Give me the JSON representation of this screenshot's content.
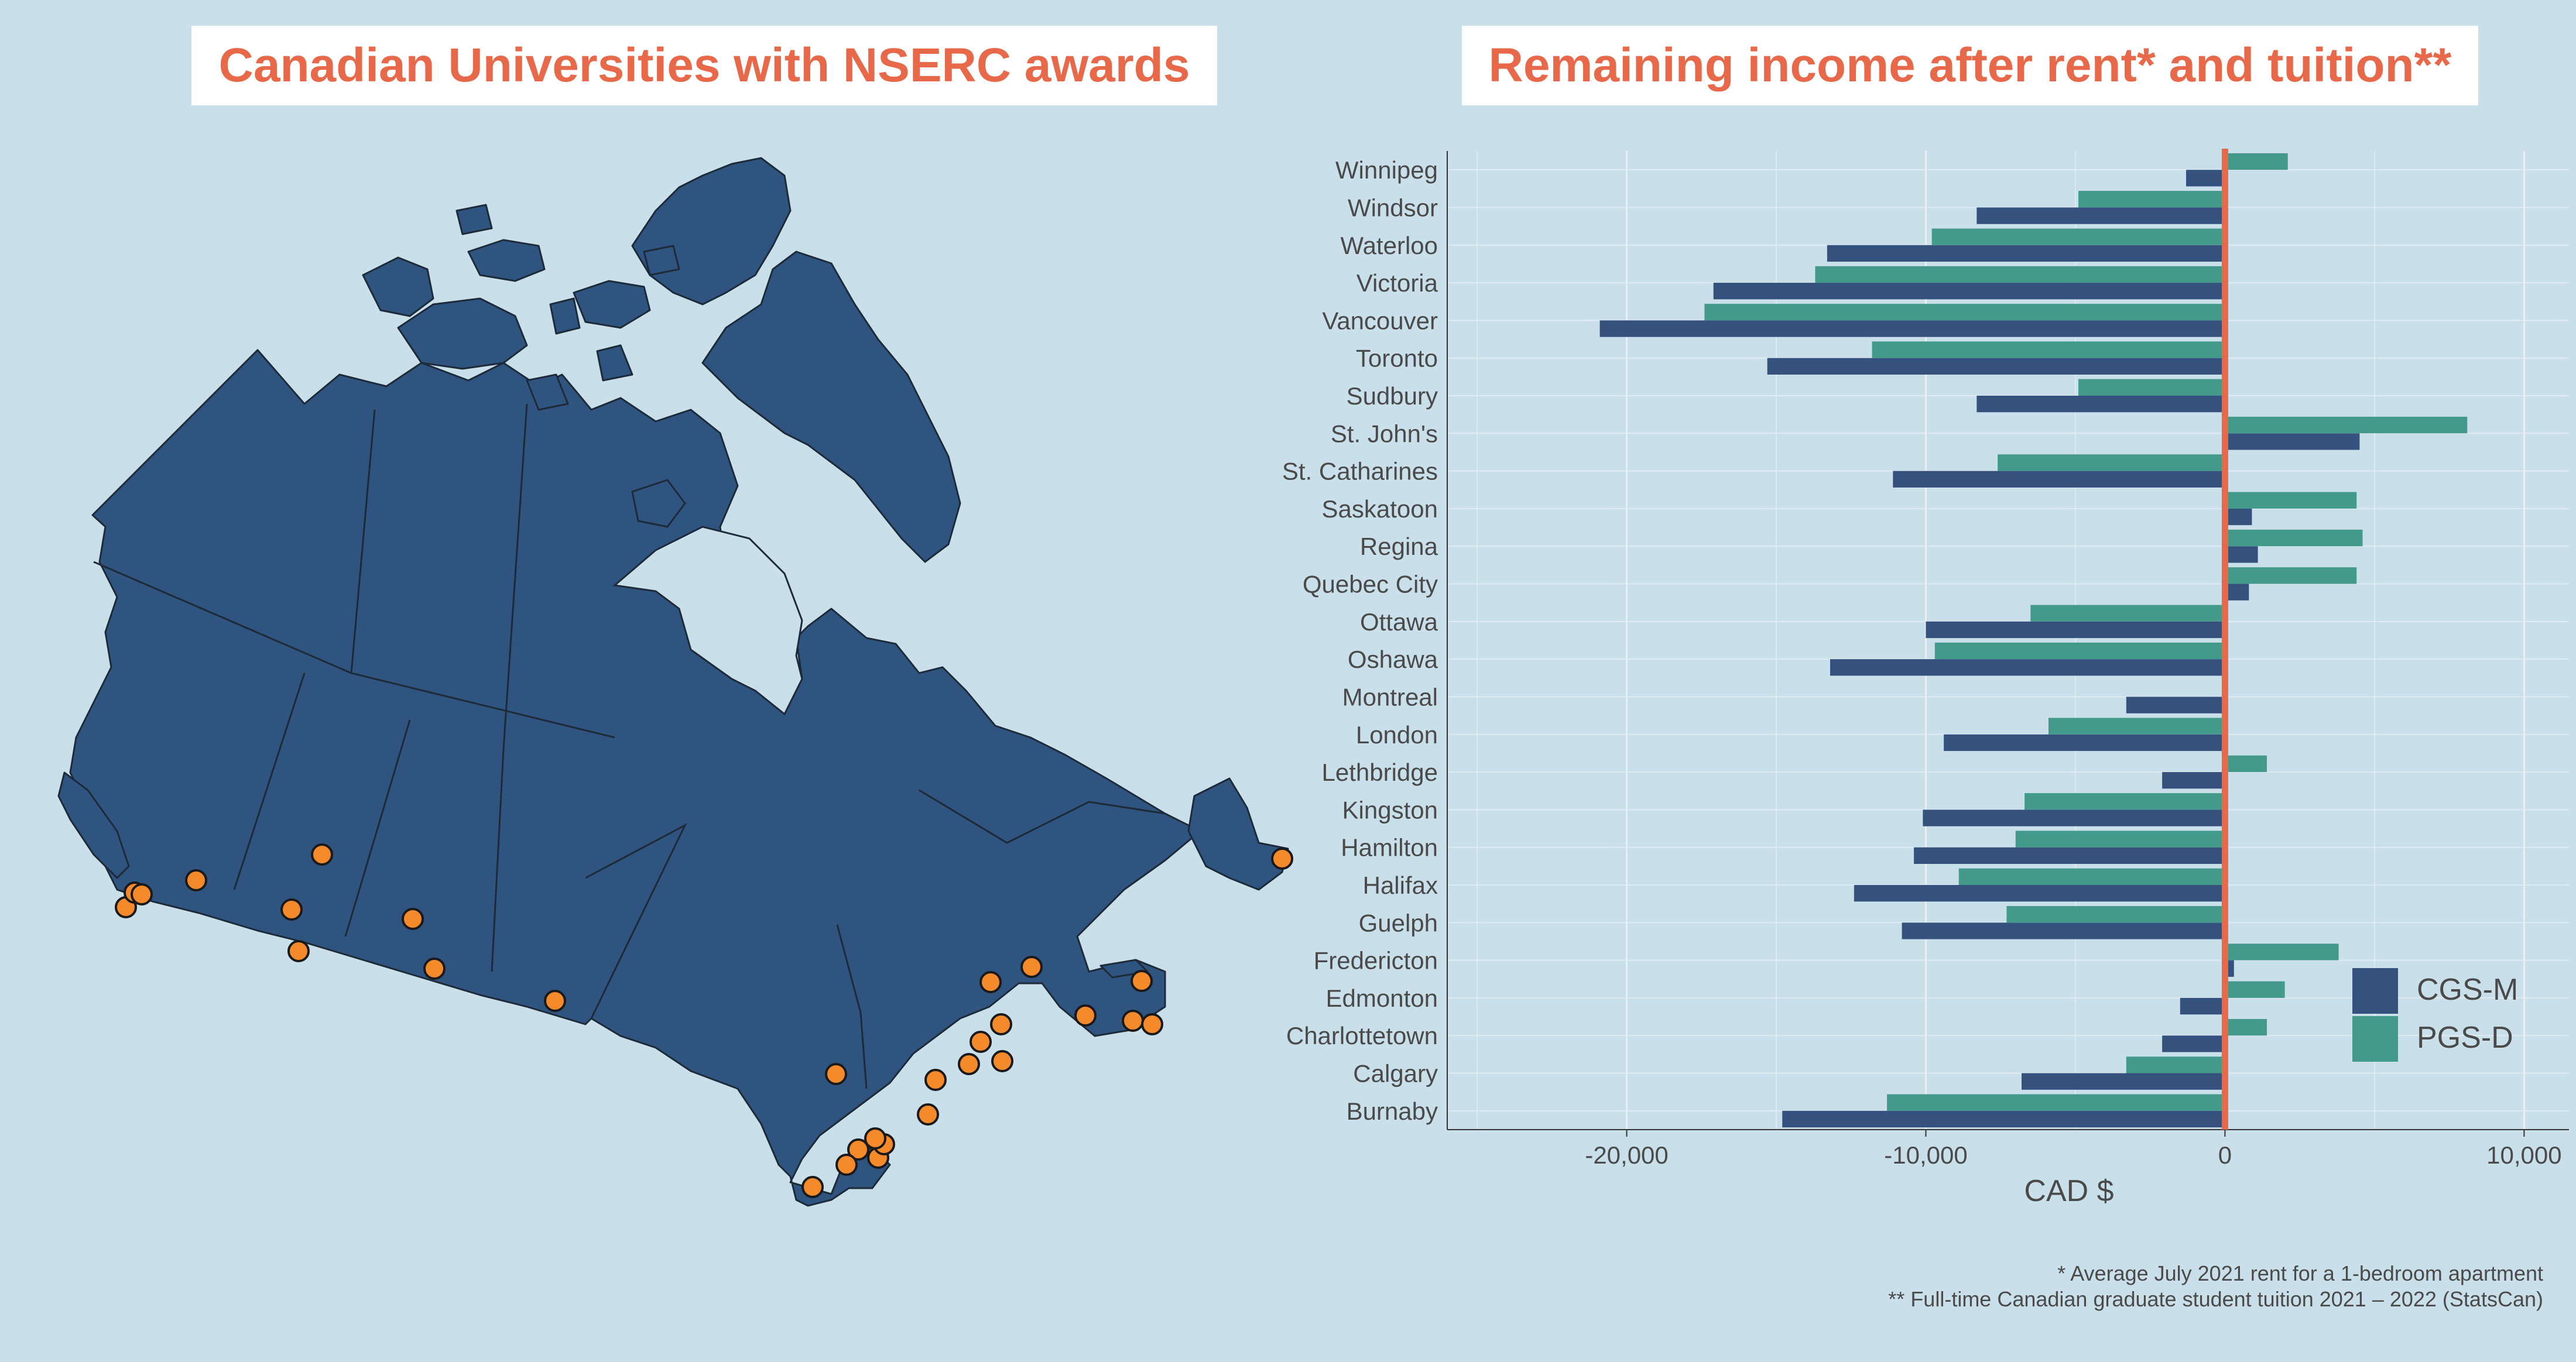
{
  "map": {
    "title": "Canadian Universities with NSERC awards",
    "land_color": "#2f5480",
    "border_color": "#1d2a38",
    "marker_color": "#f58a2a"
  },
  "chart": {
    "title": "Remaining income after rent* and tuition**",
    "footnotes": [
      "* Average July 2021 rent for a 1-bedroom apartment",
      "** Full-time Canadian graduate student tuition 2021 – 2022 (StatsCan)"
    ],
    "zero_line_color": "#e8694a"
  },
  "chart_data": {
    "type": "bar",
    "orientation": "horizontal",
    "title": "Remaining income after rent* and tuition**",
    "xlabel": "CAD $",
    "ylabel": "",
    "xlim": [
      -26000,
      11500
    ],
    "xticks": [
      -20000,
      -10000,
      0,
      10000
    ],
    "xtick_labels": [
      "-20,000",
      "-10,000",
      "0",
      "10,000"
    ],
    "grid": true,
    "legend_position": "right",
    "categories": [
      "Winnipeg",
      "Windsor",
      "Waterloo",
      "Victoria",
      "Vancouver",
      "Toronto",
      "Sudbury",
      "St. John's",
      "St. Catharines",
      "Saskatoon",
      "Regina",
      "Quebec City",
      "Ottawa",
      "Oshawa",
      "Montreal ",
      "London",
      "Lethbridge",
      "Kingston",
      "Hamilton",
      "Halifax",
      "Guelph",
      "Fredericton",
      "Edmonton",
      "Charlottetown",
      "Calgary",
      "Burnaby"
    ],
    "series": [
      {
        "name": "CGS-M",
        "color": "#35527f",
        "values": [
          -1300,
          -8300,
          -13300,
          -17100,
          -20900,
          -15300,
          -8300,
          4500,
          -11100,
          900,
          1100,
          800,
          -10000,
          -13200,
          -3300,
          -9400,
          -2100,
          -10100,
          -10400,
          -12400,
          -10800,
          300,
          -1500,
          -2100,
          -6800,
          -14800
        ]
      },
      {
        "name": "PGS-D",
        "color": "#43998a",
        "values": [
          2100,
          -4900,
          -9800,
          -13700,
          -17400,
          -11800,
          -4900,
          8100,
          -7600,
          4400,
          4600,
          4400,
          -6500,
          -9700,
          0,
          -5900,
          1400,
          -6700,
          -7000,
          -8900,
          -7300,
          3800,
          2000,
          1400,
          -3300,
          -11300
        ]
      }
    ]
  }
}
